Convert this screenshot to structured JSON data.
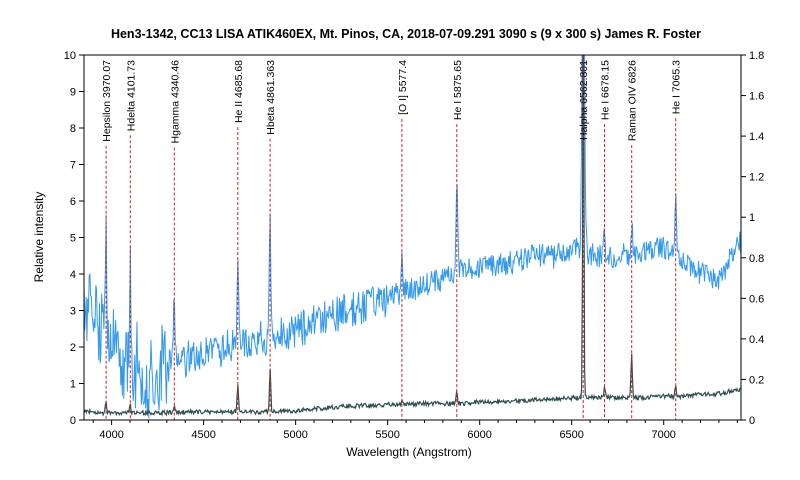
{
  "chart_data": {
    "type": "line",
    "title": "Hen3-1342, CC13 LISA ATIK460EX, Mt. Pinos, CA, 2018-07-09.291  3090 s (9 x 300 s)  James R. Foster",
    "xlabel": "Wavelength (Angstrom)",
    "ylabel": "Relative intensity",
    "xlim": [
      3850,
      7420
    ],
    "ylim": [
      0,
      10
    ],
    "y2lim": [
      0,
      1.8
    ],
    "x_ticks": [
      4000,
      4500,
      5000,
      5500,
      6000,
      6500,
      7000
    ],
    "y_ticks": [
      0,
      1,
      2,
      3,
      4,
      5,
      6,
      7,
      8,
      9,
      10
    ],
    "y2_ticks": [
      0,
      0.2,
      0.4,
      0.6,
      0.8,
      1,
      1.2,
      1.4,
      1.6,
      1.8
    ],
    "grid": false,
    "colors": {
      "blue_series": "#3399ee",
      "dark_series": "#2f4f4f",
      "marker_lines": "#cc2222"
    },
    "lines": [
      {
        "label": "Hepsilon 3970.07",
        "wavelength": 3970.07
      },
      {
        "label": "Hdelta 4101.73",
        "wavelength": 4101.73
      },
      {
        "label": "Hgamma 4340.46",
        "wavelength": 4340.46
      },
      {
        "label": "He II 4685.68",
        "wavelength": 4685.68
      },
      {
        "label": "Hbeta 4861.363",
        "wavelength": 4861.363
      },
      {
        "label": "[O I] 5577.4",
        "wavelength": 5577.4
      },
      {
        "label": "He I 5875.65",
        "wavelength": 5875.65
      },
      {
        "label": "Halpha 6562.801",
        "wavelength": 6562.801
      },
      {
        "label": "He I 6678.15",
        "wavelength": 6678.15
      },
      {
        "label": "Raman OIV 6826",
        "wavelength": 6826
      },
      {
        "label": "He I 7065.3",
        "wavelength": 7065.3
      }
    ],
    "series": [
      {
        "axis": "right",
        "x": [
          3850,
          3900,
          3950,
          4000,
          4100,
          4200,
          4300,
          4400,
          4500,
          4600,
          4700,
          4800,
          4900,
          5000,
          5100,
          5200,
          5300,
          5400,
          5500,
          5600,
          5700,
          5800,
          5900,
          6000,
          6100,
          6200,
          6300,
          6400,
          6500,
          6600,
          6700,
          6800,
          6900,
          7000,
          7100,
          7200,
          7300,
          7420
        ],
        "y": [
          0.6,
          0.5,
          0.42,
          0.35,
          0.3,
          0.22,
          0.26,
          0.3,
          0.33,
          0.35,
          0.38,
          0.4,
          0.42,
          0.44,
          0.48,
          0.52,
          0.54,
          0.56,
          0.6,
          0.64,
          0.66,
          0.7,
          0.74,
          0.76,
          0.76,
          0.78,
          0.82,
          0.8,
          0.85,
          0.82,
          0.8,
          0.82,
          0.83,
          0.85,
          0.8,
          0.72,
          0.7,
          0.88
        ]
      },
      {
        "axis": "left",
        "x": [
          3850,
          3900,
          4000,
          4100,
          4200,
          4300,
          4400,
          4500,
          4600,
          4700,
          4800,
          4900,
          5000,
          5100,
          5200,
          5300,
          5400,
          5500,
          5600,
          5700,
          5800,
          5900,
          6000,
          6100,
          6200,
          6300,
          6400,
          6500,
          6600,
          6700,
          6800,
          6900,
          7000,
          7100,
          7200,
          7300,
          7420
        ],
        "y": [
          0.25,
          0.2,
          0.2,
          0.2,
          0.2,
          0.2,
          0.22,
          0.22,
          0.22,
          0.22,
          0.22,
          0.22,
          0.25,
          0.3,
          0.35,
          0.38,
          0.4,
          0.42,
          0.42,
          0.45,
          0.45,
          0.45,
          0.5,
          0.5,
          0.52,
          0.55,
          0.58,
          0.6,
          0.62,
          0.62,
          0.6,
          0.62,
          0.65,
          0.65,
          0.7,
          0.72,
          0.85
        ]
      }
    ]
  }
}
